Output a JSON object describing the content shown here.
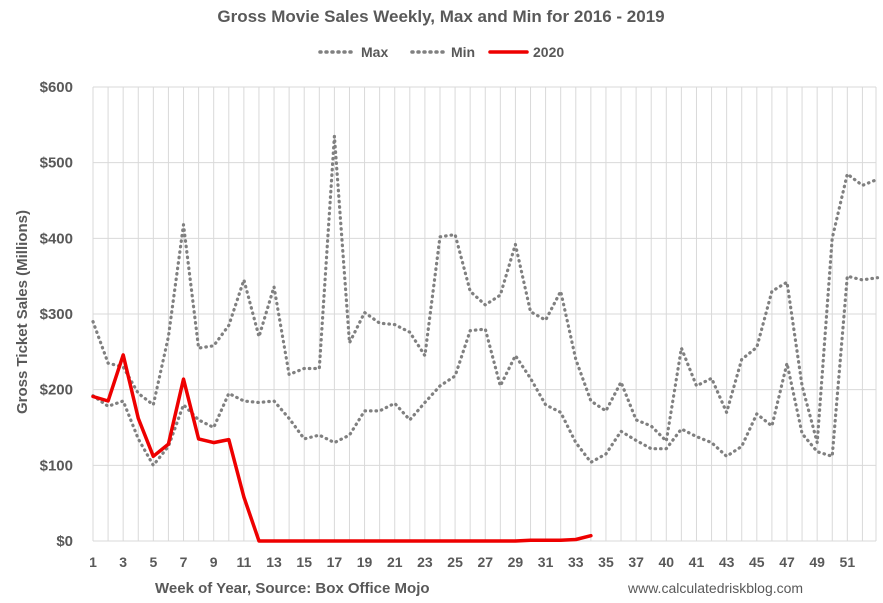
{
  "chart_data": {
    "type": "line",
    "title": "Gross Movie Sales Weekly, Max and Min for 2016 - 2019",
    "xlabel": "Week of Year, Source: Box Office Mojo",
    "ylabel": "Gross Ticket Sales (Millions)",
    "source_note": "www.calculatedriskblog.com",
    "xlim": [
      1,
      52.9
    ],
    "ylim": [
      0,
      600
    ],
    "x_ticks": [
      "1",
      "3",
      "5",
      "7",
      "9",
      "11",
      "13",
      "15",
      "17",
      "19",
      "21",
      "23",
      "25",
      "27",
      "29",
      "31",
      "33",
      "35",
      "37",
      "40",
      "41",
      "43",
      "45",
      "47",
      "49",
      "51"
    ],
    "y_ticks": [
      "$0",
      "$100",
      "$200",
      "$300",
      "$400",
      "$500",
      "$600"
    ],
    "y_tick_values": [
      0,
      100,
      200,
      300,
      400,
      500,
      600
    ],
    "grid": true,
    "legend": "top-center",
    "colors": {
      "max": "#808080",
      "min": "#808080",
      "y2020": "#ee0000",
      "grid": "#d9d9d9",
      "text": "#595959"
    },
    "series": [
      {
        "name": "Max",
        "style": "dotted",
        "x": [
          1,
          2,
          3,
          4,
          5,
          6,
          7,
          8,
          9,
          10,
          11,
          12,
          13,
          14,
          15,
          16,
          17,
          18,
          19,
          20,
          21,
          22,
          23,
          24,
          25,
          26,
          27,
          28,
          29,
          30,
          31,
          32,
          33,
          34,
          35,
          36,
          37,
          38,
          39,
          40,
          41,
          42,
          43,
          44,
          45,
          46,
          47,
          48,
          49,
          50,
          51,
          52,
          53
        ],
        "values": [
          290,
          235,
          230,
          195,
          180,
          270,
          418,
          255,
          258,
          285,
          345,
          270,
          336,
          220,
          228,
          228,
          535,
          262,
          302,
          288,
          286,
          276,
          245,
          402,
          405,
          330,
          312,
          325,
          392,
          303,
          292,
          330,
          240,
          185,
          172,
          210,
          160,
          152,
          132,
          255,
          205,
          215,
          170,
          240,
          256,
          330,
          342,
          205,
          130,
          400,
          485,
          470,
          478
        ]
      },
      {
        "name": "Min",
        "style": "dotted",
        "x": [
          1,
          2,
          3,
          4,
          5,
          6,
          7,
          8,
          9,
          10,
          11,
          12,
          13,
          14,
          15,
          16,
          17,
          18,
          19,
          20,
          21,
          22,
          23,
          24,
          25,
          26,
          27,
          28,
          29,
          30,
          31,
          32,
          33,
          34,
          35,
          36,
          37,
          38,
          39,
          40,
          41,
          42,
          43,
          44,
          45,
          46,
          47,
          48,
          49,
          50,
          51,
          52,
          53
        ],
        "values": [
          192,
          178,
          185,
          135,
          100,
          125,
          180,
          160,
          150,
          195,
          185,
          183,
          185,
          162,
          135,
          140,
          130,
          140,
          172,
          172,
          182,
          160,
          183,
          205,
          218,
          278,
          280,
          205,
          245,
          215,
          180,
          170,
          130,
          104,
          115,
          145,
          133,
          122,
          122,
          148,
          138,
          130,
          112,
          125,
          168,
          152,
          235,
          142,
          118,
          112,
          350,
          345,
          348
        ]
      },
      {
        "name": "2020",
        "style": "solid",
        "x": [
          1,
          2,
          3,
          4,
          5,
          6,
          7,
          8,
          9,
          10,
          11,
          12,
          13,
          14,
          15,
          16,
          17,
          18,
          19,
          20,
          21,
          22,
          23,
          24,
          25,
          26,
          27,
          28,
          29,
          30,
          31,
          32,
          33,
          34
        ],
        "values": [
          191,
          185,
          246,
          162,
          112,
          128,
          214,
          135,
          130,
          134,
          58,
          0,
          0,
          0,
          0,
          0,
          0,
          0,
          0,
          0,
          0,
          0,
          0,
          0,
          0,
          0,
          0,
          0,
          0,
          1,
          1,
          1,
          2,
          7
        ]
      }
    ]
  }
}
